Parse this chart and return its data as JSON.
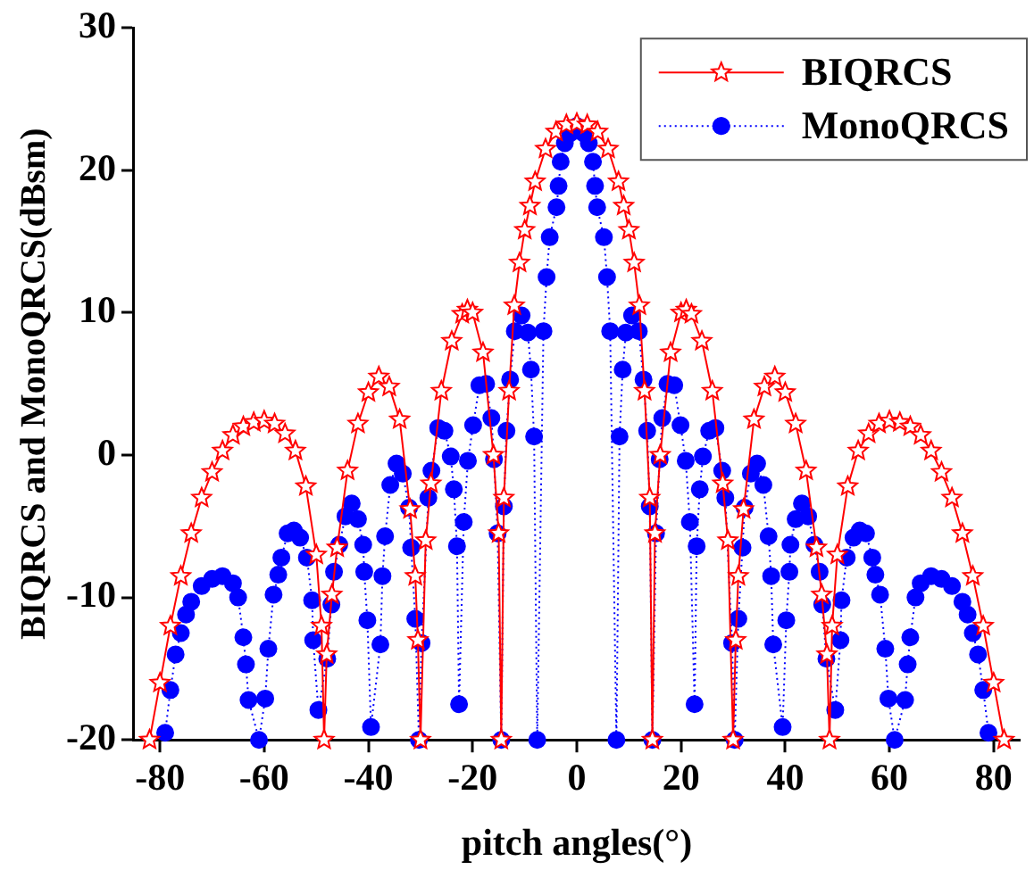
{
  "chart_data": {
    "type": "line",
    "xlabel": "pitch angles(°)",
    "ylabel": "BIQRCS and MonoQRCS(dBsm)",
    "xlim": [
      -85,
      85
    ],
    "xticks": [
      -80,
      -60,
      -40,
      -20,
      0,
      20,
      40,
      60,
      80
    ],
    "ylim": [
      -20,
      30
    ],
    "yticks": [
      -20,
      -10,
      0,
      10,
      20,
      30
    ],
    "grid": false,
    "legend": "top right",
    "series": [
      {
        "name": "BIQRCS",
        "color": "#ff0000",
        "marker": "star",
        "line_style": "solid",
        "x": [
          -82,
          -80,
          -78,
          -76,
          -74,
          -72,
          -70,
          -68,
          -66,
          -64,
          -62,
          -60,
          -58,
          -56,
          -54,
          -52,
          -50,
          -49,
          -48.5,
          -48,
          -47,
          -46,
          -44,
          -42,
          -40,
          -38,
          -36,
          -34,
          -32,
          -31,
          -30.5,
          -30,
          -29,
          -28,
          -26,
          -24,
          -22,
          -21,
          -20,
          -18,
          -16,
          -15,
          -14.5,
          -14,
          -13,
          -12,
          -11,
          -10,
          -9,
          -8,
          -6,
          -4,
          -2,
          0,
          2,
          4,
          6,
          8,
          9,
          10,
          11,
          12,
          13,
          14,
          14.5,
          15,
          16,
          18,
          20,
          21,
          22,
          24,
          26,
          28,
          29,
          30,
          30.5,
          31,
          32,
          34,
          36,
          38,
          40,
          42,
          44,
          46,
          47,
          48,
          48.5,
          49,
          50,
          52,
          54,
          56,
          58,
          60,
          62,
          64,
          66,
          68,
          70,
          72,
          74,
          76,
          78,
          80,
          82
        ],
        "values": [
          -20,
          -16,
          -12,
          -8.5,
          -5.5,
          -3,
          -1.2,
          0.3,
          1.4,
          2,
          2.3,
          2.4,
          2.2,
          1.5,
          0.3,
          -2.2,
          -7,
          -12,
          -20,
          -14,
          -9.8,
          -6.5,
          -1.1,
          2.2,
          4.4,
          5.5,
          4.8,
          2.5,
          -3.8,
          -8.5,
          -13,
          -20,
          -6,
          -2,
          4.5,
          8,
          9.9,
          10.2,
          10,
          7.2,
          0,
          -5.5,
          -20,
          -3,
          4.5,
          10.5,
          13.5,
          15.8,
          17.5,
          19.2,
          21.5,
          22.7,
          23.2,
          23.3,
          23.2,
          22.7,
          21.5,
          19.2,
          17.5,
          15.8,
          13.5,
          10.5,
          4.5,
          -3,
          -20,
          -5.5,
          0,
          7.2,
          10,
          10.2,
          9.9,
          8,
          4.5,
          -2,
          -6,
          -20,
          -13,
          -8.5,
          -3.8,
          2.5,
          4.8,
          5.5,
          4.4,
          2.2,
          -1.1,
          -6.5,
          -9.8,
          -14,
          -20,
          -12,
          -7,
          -2.2,
          0.3,
          1.5,
          2.2,
          2.4,
          2.3,
          2,
          1.4,
          0.3,
          -1.2,
          -3,
          -5.5,
          -8.5,
          -12,
          -16,
          -20
        ]
      },
      {
        "name": "MonoQRCS",
        "color": "#0000ff",
        "marker": "circle",
        "line_style": "dotted",
        "x": [
          -79,
          -78,
          -77,
          -76,
          -75,
          -74,
          -72,
          -70,
          -68,
          -66,
          -65,
          -64,
          -63.5,
          -63,
          -61,
          -59.8,
          -59.2,
          -58.2,
          -57.3,
          -56.7,
          -55.5,
          -54.3,
          -53.1,
          -51.8,
          -50.8,
          -50.6,
          -49.6,
          -47.9,
          -47.1,
          -46.6,
          -45.6,
          -44.4,
          -43.2,
          -42,
          -41,
          -40.8,
          -40.2,
          -39.5,
          -37.7,
          -37.3,
          -36.8,
          -35.8,
          -34.6,
          -33.4,
          -32.2,
          -31.8,
          -31,
          -30.3,
          -29.8,
          -28.5,
          -27.9,
          -26.6,
          -25.4,
          -24.2,
          -23.6,
          -23,
          -22.6,
          -21.7,
          -20.9,
          -19.9,
          -18.7,
          -17.4,
          -16.4,
          -15.9,
          -15.2,
          -14.5,
          -14,
          -13.5,
          -12.8,
          -11.9,
          -10.6,
          -9.4,
          -8.8,
          -8.2,
          -7.6,
          -6.4,
          -5.8,
          -5.2,
          -3.9,
          -3.5,
          -3.1,
          -2.3,
          -1.3,
          0,
          1.3,
          2.3,
          3.1,
          3.5,
          3.9,
          5.2,
          5.8,
          6.4,
          7.6,
          8.2,
          8.8,
          9.4,
          10.6,
          11.9,
          12.8,
          13.5,
          14,
          14.5,
          15.2,
          15.9,
          16.4,
          17.4,
          18.7,
          19.9,
          20.9,
          21.7,
          22.6,
          23,
          23.6,
          24.2,
          25.4,
          26.6,
          27.9,
          28.5,
          29.8,
          30.3,
          31,
          31.8,
          32.2,
          33.4,
          34.6,
          35.8,
          36.8,
          37.3,
          37.7,
          39.5,
          40.2,
          40.8,
          41,
          42,
          43.2,
          44.4,
          45.6,
          46.6,
          47.1,
          47.9,
          49.6,
          50.6,
          50.8,
          51.8,
          53.1,
          54.3,
          55.5,
          56.7,
          57.3,
          58.2,
          59.2,
          59.8,
          61,
          63,
          63.5,
          64,
          65,
          66,
          68,
          70,
          72,
          74,
          75,
          76,
          77,
          78,
          79
        ],
        "values": [
          -19.5,
          -16.5,
          -14,
          -12.5,
          -11.2,
          -10.3,
          -9.2,
          -8.7,
          -8.5,
          -9,
          -10,
          -12.8,
          -14.7,
          -17.2,
          -20,
          -17.1,
          -13.6,
          -9.8,
          -8.4,
          -7.2,
          -5.5,
          -5.3,
          -5.8,
          -7.2,
          -10.2,
          -13,
          -17.9,
          -14.3,
          -10.5,
          -8.2,
          -6.3,
          -4.3,
          -3.4,
          -4.5,
          -6.3,
          -8.2,
          -11.6,
          -19.1,
          -13.3,
          -8.5,
          -5.7,
          -2.1,
          -0.6,
          -1.3,
          -3.7,
          -6.5,
          -11.5,
          -20,
          -13.2,
          -3,
          -1.1,
          1.9,
          1.7,
          -0.1,
          -2.4,
          -6.4,
          -17.5,
          -4.7,
          -0.4,
          2.1,
          4.9,
          5,
          2.6,
          -0.3,
          -5.5,
          -20,
          -3.6,
          1.7,
          5.3,
          8.7,
          9.8,
          8.6,
          6,
          1.3,
          -20,
          8.7,
          12.5,
          15.3,
          17.4,
          18.9,
          20.6,
          21.9,
          22.6,
          23.1,
          22.6,
          21.9,
          20.6,
          18.9,
          17.4,
          15.3,
          12.5,
          8.7,
          -20,
          1.3,
          6,
          8.6,
          9.8,
          8.7,
          5.3,
          1.7,
          -3.6,
          -20,
          -5.5,
          -0.3,
          2.6,
          5,
          4.9,
          2.1,
          -0.4,
          -4.7,
          -17.5,
          -6.4,
          -2.4,
          -0.1,
          1.7,
          1.9,
          -1.1,
          -3,
          -13.2,
          -20,
          -11.5,
          -6.5,
          -3.7,
          -1.3,
          -0.6,
          -2.1,
          -5.7,
          -8.5,
          -13.3,
          -19.1,
          -11.6,
          -8.2,
          -6.3,
          -4.5,
          -3.4,
          -4.3,
          -6.3,
          -8.2,
          -10.5,
          -14.3,
          -17.9,
          -13,
          -10.2,
          -7.2,
          -5.8,
          -5.3,
          -5.5,
          -7.2,
          -8.4,
          -9.8,
          -13.6,
          -17.1,
          -20,
          -17.2,
          -14.7,
          -12.8,
          -10,
          -9,
          -8.5,
          -8.7,
          -9.2,
          -10.3,
          -11.2,
          -12.5,
          -14,
          -16.5,
          -19.5
        ]
      }
    ]
  }
}
